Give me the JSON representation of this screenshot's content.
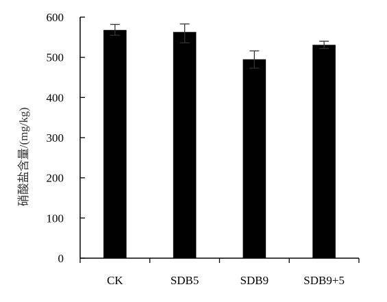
{
  "chart_data": {
    "type": "bar",
    "title": "",
    "xlabel": "",
    "ylabel": "硝酸盐含量/(mg/kg)",
    "categories": [
      "CK",
      "SDB5",
      "SDB9",
      "SDB9+5"
    ],
    "values": [
      568,
      563,
      495,
      531
    ],
    "error": [
      [
        555,
        582
      ],
      [
        536,
        583
      ],
      [
        473,
        516
      ],
      [
        522,
        540
      ]
    ],
    "ylim": [
      0,
      600
    ],
    "yticks": [
      0,
      100,
      200,
      300,
      400,
      500,
      600
    ],
    "grid": false,
    "legend": "none",
    "colors": {
      "bar": "#000000",
      "axis": "#000000",
      "error_bar": "#333333"
    }
  }
}
